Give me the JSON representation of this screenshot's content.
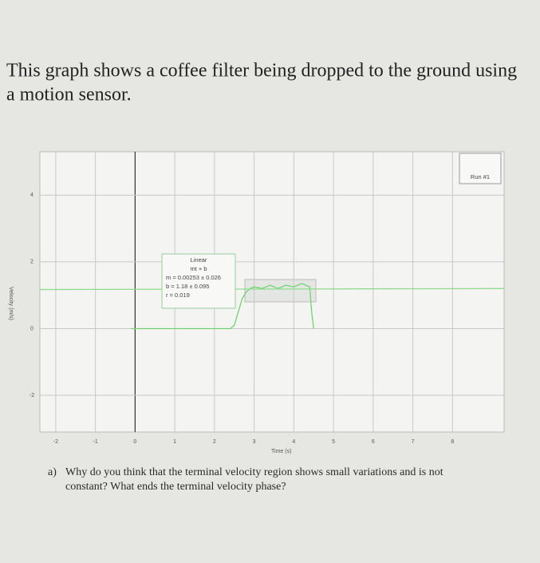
{
  "heading": [
    "This graph shows a coffee filter being dropped to the ground using",
    "a motion sensor."
  ],
  "chart_data": {
    "type": "line",
    "x_label": "Time (s)",
    "y_label": "Velocity (m/s)",
    "xlim": [
      -2.4,
      9.3
    ],
    "ylim": [
      -3.1,
      5.3
    ],
    "xticks": [
      -2,
      -1,
      0,
      1,
      2,
      3,
      4,
      5,
      6,
      7,
      8
    ],
    "yticks": [
      -2,
      0,
      2,
      4
    ],
    "grid": true,
    "series": [
      {
        "name": "Run #1",
        "color": "#6fd36f",
        "x": [
          -0.1,
          0,
          0.5,
          1,
          1.5,
          2,
          2.4,
          2.5,
          2.6,
          2.7,
          2.8,
          2.9,
          3.0,
          3.2,
          3.4,
          3.6,
          3.8,
          4.0,
          4.2,
          4.4,
          4.45,
          4.5
        ],
        "values": [
          0,
          0,
          0,
          0,
          0,
          0,
          0,
          0.1,
          0.5,
          0.9,
          1.1,
          1.2,
          1.25,
          1.2,
          1.3,
          1.2,
          1.3,
          1.25,
          1.35,
          1.25,
          0.5,
          0
        ]
      },
      {
        "color": "#8fdc8f",
        "x": [
          -2.4,
          9.3
        ],
        "values": [
          1.17,
          1.2
        ]
      }
    ],
    "annotation": [
      "Linear",
      "mt + b",
      "m = 0.00253 ± 0.026",
      "b = 1.18    ± 0.095",
      "r = 0.019"
    ]
  },
  "question": {
    "label": "a)",
    "lines": [
      "Why do you think that the terminal velocity region shows small variations and is not",
      "constant? What ends the terminal velocity phase?"
    ]
  }
}
